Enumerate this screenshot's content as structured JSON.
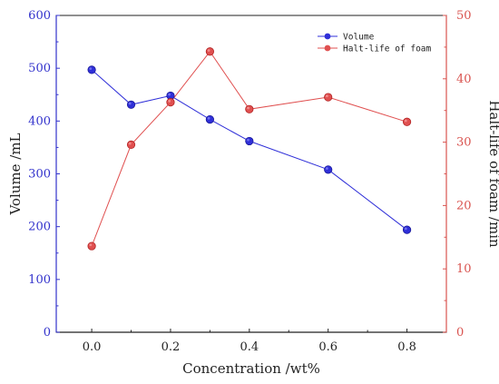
{
  "chart_data": {
    "type": "line",
    "title": "",
    "xlabel": "Concentration /wt%",
    "ylabel_left": "Volume /mL",
    "ylabel_right": "Halt-life of foam /min",
    "xlim": [
      -0.09,
      0.9
    ],
    "ylim_left": [
      0,
      600
    ],
    "ylim_right": [
      0,
      50
    ],
    "x_ticks": [
      "0.0",
      "0.2",
      "0.4",
      "0.6",
      "0.8"
    ],
    "x_tick_values": [
      0.0,
      0.2,
      0.4,
      0.6,
      0.8
    ],
    "y_left_ticks": [
      "0",
      "100",
      "200",
      "300",
      "400",
      "500",
      "600"
    ],
    "y_left_tick_values": [
      0,
      100,
      200,
      300,
      400,
      500,
      600
    ],
    "y_right_ticks": [
      "0",
      "10",
      "20",
      "30",
      "40",
      "50"
    ],
    "y_right_tick_values": [
      0,
      10,
      20,
      30,
      40,
      50
    ],
    "legend_position": "top-right",
    "grid": false,
    "series": [
      {
        "name": "Volume",
        "axis": "left",
        "color": "#2f2fd8",
        "x": [
          0.0,
          0.1,
          0.2,
          0.3,
          0.4,
          0.6,
          0.8
        ],
        "y": [
          497,
          431,
          448,
          403,
          362,
          308,
          194
        ]
      },
      {
        "name": "Halt-life of foam",
        "axis": "right",
        "color": "#e05050",
        "x": [
          0.0,
          0.1,
          0.2,
          0.3,
          0.4,
          0.6,
          0.8
        ],
        "y": [
          13.6,
          29.6,
          36.3,
          44.3,
          35.2,
          37.1,
          33.2
        ]
      }
    ]
  }
}
